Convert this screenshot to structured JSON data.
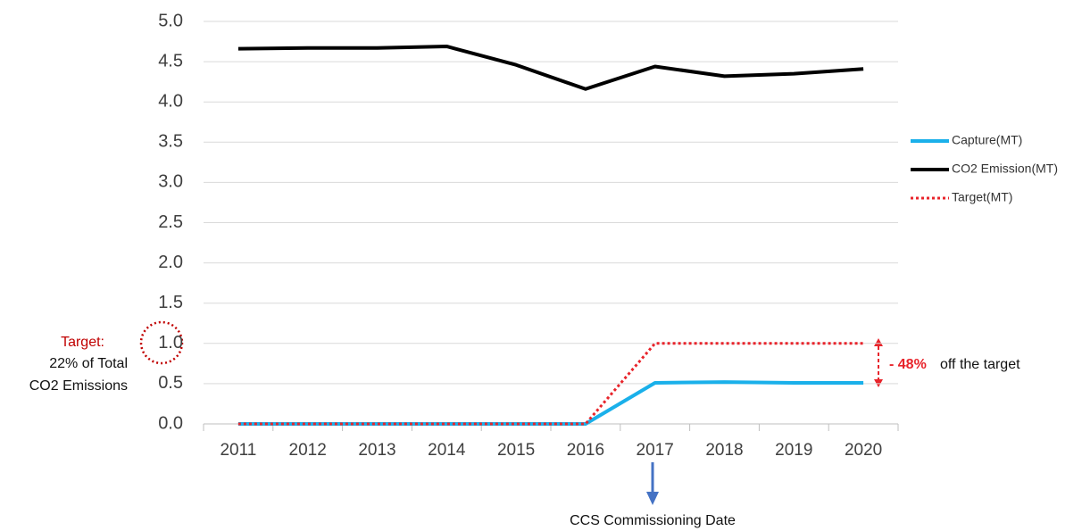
{
  "chart_data": {
    "type": "line",
    "categories": [
      "2011",
      "2012",
      "2013",
      "2014",
      "2015",
      "2016",
      "2017",
      "2018",
      "2019",
      "2020"
    ],
    "series": [
      {
        "name": "Capture(MT)",
        "color": "#1ab0ea",
        "style": "solid",
        "values": [
          0,
          0,
          0,
          0,
          0,
          0,
          0.51,
          0.52,
          0.51,
          0.51
        ]
      },
      {
        "name": "CO2 Emission(MT)",
        "color": "#000000",
        "style": "solid",
        "values": [
          4.66,
          4.67,
          4.67,
          4.69,
          4.46,
          4.16,
          4.44,
          4.32,
          4.35,
          4.41
        ]
      },
      {
        "name": "Target(MT)",
        "color": "#e8242b",
        "style": "dotted",
        "values": [
          0,
          0,
          0,
          0,
          0,
          0,
          1,
          1,
          1,
          1
        ]
      }
    ],
    "ylim": [
      0,
      5
    ],
    "yticks": [
      {
        "value": 0,
        "label": "0.0"
      },
      {
        "value": 0.5,
        "label": "0.5"
      },
      {
        "value": 1,
        "label": "1.0"
      },
      {
        "value": 1.5,
        "label": "1.5"
      },
      {
        "value": 2,
        "label": "2.0"
      },
      {
        "value": 2.5,
        "label": "2.5"
      },
      {
        "value": 3,
        "label": "3.0"
      },
      {
        "value": 3.5,
        "label": "3.5"
      },
      {
        "value": 4,
        "label": "4.0"
      },
      {
        "value": 4.5,
        "label": "4.5"
      },
      {
        "value": 5,
        "label": "5.0"
      }
    ],
    "grid": true,
    "legend": "right",
    "annotations": {
      "target_title": "Target:",
      "target_line1": "22% of Total",
      "target_line2": "CO2 Emissions",
      "gap_value": "- 48%",
      "gap_text": "off the target",
      "commissioning": "CCS Commissioning Date"
    }
  }
}
